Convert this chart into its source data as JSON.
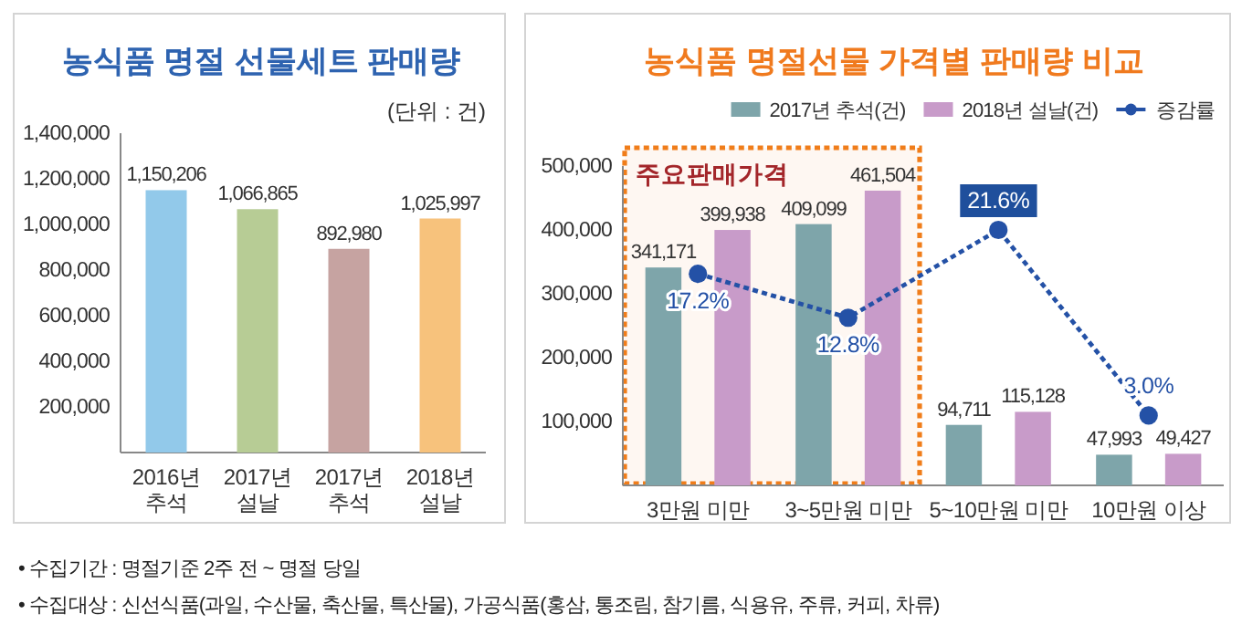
{
  "chart_data": [
    {
      "type": "bar",
      "title": "농식품 명절 선물세트 판매량",
      "categories": [
        "2016년 추석",
        "2017년 설날",
        "2017년 추석",
        "2018년 설날"
      ],
      "values": [
        1150206,
        1066865,
        892980,
        1025997
      ],
      "value_labels": [
        "1,150,206",
        "1,066,865",
        "892,980",
        "1,025,997"
      ],
      "colors": [
        "#92c9ea",
        "#b7cc95",
        "#c6a3a1",
        "#f7c27c"
      ],
      "ylim": [
        0,
        1400000
      ],
      "yticks": [
        {
          "value": 200000,
          "label": "200,000"
        },
        {
          "value": 400000,
          "label": "400,000"
        },
        {
          "value": 600000,
          "label": "600,000"
        },
        {
          "value": 800000,
          "label": "800,000"
        },
        {
          "value": 1000000,
          "label": "1,000,000"
        },
        {
          "value": 1200000,
          "label": "1,200,000"
        },
        {
          "value": 1400000,
          "label": "1,400,000"
        }
      ],
      "annotations": [
        "(단위 : 건)"
      ]
    },
    {
      "type": "bar",
      "title": "농식품 명절선물 가격별 판매량 비교",
      "categories": [
        "3만원 미만",
        "3~5만원 미만",
        "5~10만원 미만",
        "10만원 이상"
      ],
      "series": [
        {
          "name": "2017년 추석(건)",
          "color": "#7ea5aa",
          "values": [
            341171,
            409099,
            94711,
            47993
          ],
          "value_labels": [
            "341,171",
            "409,099",
            "94,711",
            "47,993"
          ]
        },
        {
          "name": "2018년 설날(건)",
          "color": "#c89bc9",
          "values": [
            399938,
            461504,
            115128,
            49427
          ],
          "value_labels": [
            "399,938",
            "461,504",
            "115,128",
            "49,427"
          ]
        },
        {
          "name": "증감률",
          "type": "line",
          "axis": "y2",
          "color": "#2451a6",
          "values": [
            17.2,
            12.8,
            21.6,
            3.0
          ],
          "value_labels": [
            "17.2%",
            "12.8%",
            "21.6%",
            "3.0%"
          ],
          "marker": "circle",
          "line_style": "dotted"
        }
      ],
      "ylim": [
        0,
        500000
      ],
      "yticks": [
        {
          "value": 100000,
          "label": "100,000"
        },
        {
          "value": 200000,
          "label": "200,000"
        },
        {
          "value": 300000,
          "label": "300,000"
        },
        {
          "value": 400000,
          "label": "400,000"
        },
        {
          "value": 500000,
          "label": "500,000"
        }
      ],
      "y2lim": [
        -4,
        28
      ],
      "legend": "top right",
      "bands": [
        {
          "axis": "x",
          "from": "3만원 미만",
          "to": "3~5만원 미만",
          "label": "주요판매가격",
          "color": "#f07d1a"
        }
      ],
      "annotations": [
        "• 수집기간 : 명절기준 2주 전 ~ 명절 당일",
        "• 수집대상 : 신선식품(과일, 수산물, 축산물, 특산물), 가공식품(홍삼, 통조림, 참기름, 식용유, 주류, 커피, 차류)"
      ]
    }
  ]
}
